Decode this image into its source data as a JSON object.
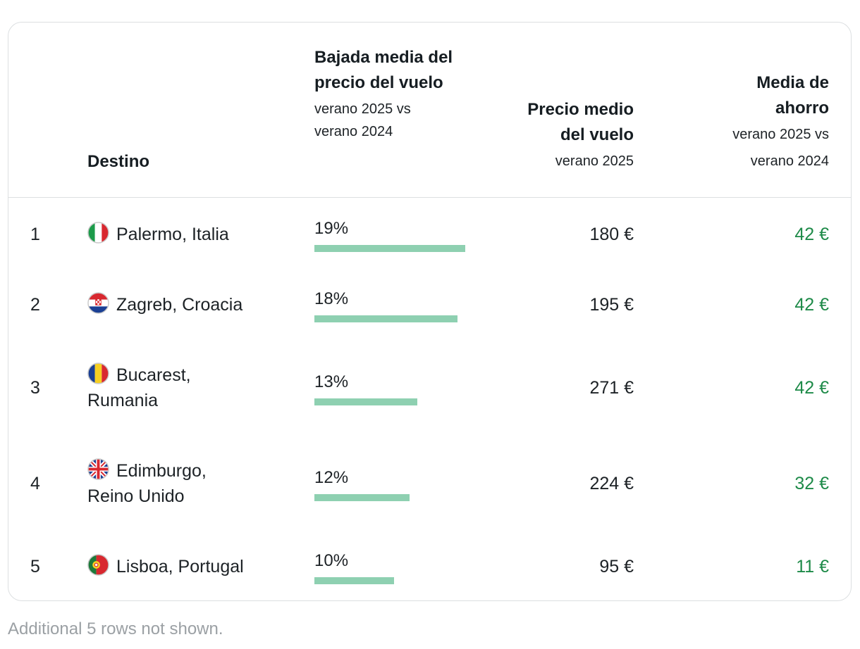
{
  "table": {
    "headers": {
      "destino": "Destino",
      "bajada_title": "Bajada media del precio del vuelo",
      "bajada_sub_1": "verano 2025 vs",
      "bajada_sub_2": "verano 2024",
      "precio_title_1": "Precio medio",
      "precio_title_2": "del vuelo",
      "precio_sub": "verano 2025",
      "ahorro_title_1": "Media de",
      "ahorro_title_2": "ahorro",
      "ahorro_sub_1": "verano 2025 vs",
      "ahorro_sub_2": "verano 2024"
    },
    "rows": [
      {
        "rank": "1",
        "flag": "italy-flag-icon",
        "destination_line1": "Palermo, Italia",
        "destination_line2": "",
        "drop": "19%",
        "drop_value": 19,
        "price": "180 €",
        "saving": "42 €"
      },
      {
        "rank": "2",
        "flag": "croatia-flag-icon",
        "destination_line1": "Zagreb, Croacia",
        "destination_line2": "",
        "drop": "18%",
        "drop_value": 18,
        "price": "195 €",
        "saving": "42 €"
      },
      {
        "rank": "3",
        "flag": "romania-flag-icon",
        "destination_line1": "Bucarest,",
        "destination_line2": "Rumania",
        "drop": "13%",
        "drop_value": 13,
        "price": "271 €",
        "saving": "42 €"
      },
      {
        "rank": "4",
        "flag": "uk-flag-icon",
        "destination_line1": "Edimburgo,",
        "destination_line2": "Reino Unido",
        "drop": "12%",
        "drop_value": 12,
        "price": "224 €",
        "saving": "32 €"
      },
      {
        "rank": "5",
        "flag": "portugal-flag-icon",
        "destination_line1": "Lisboa, Portugal",
        "destination_line2": "",
        "drop": "10%",
        "drop_value": 10,
        "price": "95 €",
        "saving": "11 €"
      }
    ],
    "footnote": "Additional 5 rows not shown."
  },
  "colors": {
    "bar": "#8ed0b1",
    "saving_text": "#1d8a48",
    "border": "#dcdfe1"
  }
}
